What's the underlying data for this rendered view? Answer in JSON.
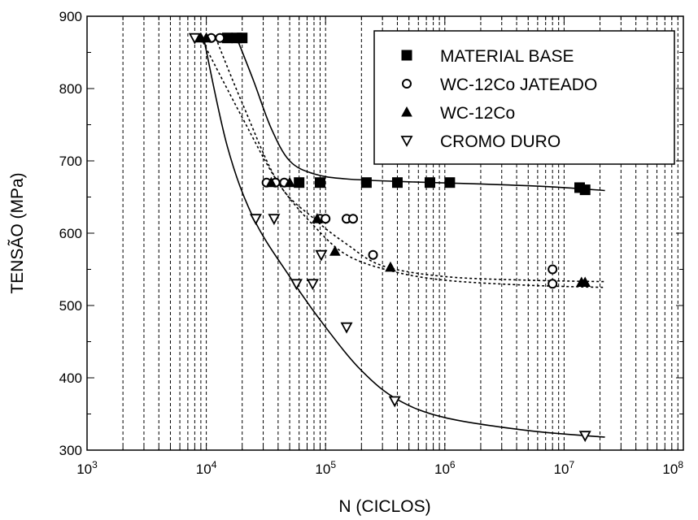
{
  "chart_data": {
    "type": "scatter",
    "title": "",
    "xlabel": "N (CICLOS)",
    "ylabel": "TENSÃO (MPa)",
    "x_scale": "log",
    "xlim": [
      1000,
      100000000
    ],
    "ylim": [
      300,
      900
    ],
    "x_ticks": [
      {
        "value": 1000,
        "base": "10",
        "exp": "3"
      },
      {
        "value": 10000,
        "base": "10",
        "exp": "4"
      },
      {
        "value": 100000,
        "base": "10",
        "exp": "5"
      },
      {
        "value": 1000000,
        "base": "10",
        "exp": "6"
      },
      {
        "value": 10000000,
        "base": "10",
        "exp": "7"
      },
      {
        "value": 100000000,
        "base": "10",
        "exp": "8"
      }
    ],
    "y_ticks": [
      300,
      400,
      500,
      600,
      700,
      800,
      900
    ],
    "grid": "vertical minor and major dashed lines",
    "legend_position": "top-right",
    "series": [
      {
        "name": "MATERIAL BASE",
        "marker": "filled-square",
        "points": [
          [
            18000,
            870
          ],
          [
            20000,
            870
          ],
          [
            60000,
            670
          ],
          [
            90000,
            670
          ],
          [
            220000,
            670
          ],
          [
            400000,
            670
          ],
          [
            750000,
            670
          ],
          [
            1100000,
            670
          ],
          [
            13500000,
            663
          ],
          [
            15000,
            870
          ],
          [
            15000000,
            660
          ]
        ],
        "fit": [
          [
            18000,
            870
          ],
          [
            25000,
            810
          ],
          [
            35000,
            745
          ],
          [
            50000,
            700
          ],
          [
            80000,
            682
          ],
          [
            150000,
            675
          ],
          [
            500000,
            671
          ],
          [
            2000000,
            668
          ],
          [
            8000000,
            664
          ],
          [
            22000000,
            659
          ]
        ]
      },
      {
        "name": "WC-12Co JATEADO",
        "marker": "open-circle",
        "points": [
          [
            11000,
            870
          ],
          [
            13000,
            870
          ],
          [
            32000,
            670
          ],
          [
            38000,
            670
          ],
          [
            45000,
            670
          ],
          [
            90000,
            620
          ],
          [
            100000,
            620
          ],
          [
            150000,
            620
          ],
          [
            170000,
            620
          ],
          [
            250000,
            570
          ],
          [
            8000000,
            550
          ],
          [
            8000000,
            530
          ]
        ],
        "fit": [
          [
            12000,
            870
          ],
          [
            20000,
            780
          ],
          [
            40000,
            670
          ],
          [
            80000,
            620
          ],
          [
            150000,
            585
          ],
          [
            300000,
            555
          ],
          [
            1000000,
            540
          ],
          [
            5000000,
            535
          ],
          [
            22000000,
            533
          ]
        ]
      },
      {
        "name": "WC-12Co",
        "marker": "filled-triangle",
        "points": [
          [
            9000,
            870
          ],
          [
            10000,
            870
          ],
          [
            35000,
            670
          ],
          [
            50000,
            670
          ],
          [
            85000,
            620
          ],
          [
            120000,
            575
          ],
          [
            350000,
            553
          ],
          [
            14000000,
            532
          ],
          [
            15000000,
            532
          ]
        ],
        "fit": [
          [
            9000,
            870
          ],
          [
            20000,
            760
          ],
          [
            40000,
            670
          ],
          [
            80000,
            610
          ],
          [
            150000,
            570
          ],
          [
            350000,
            548
          ],
          [
            1000000,
            535
          ],
          [
            5000000,
            528
          ],
          [
            22000000,
            525
          ]
        ]
      },
      {
        "name": "CROMO DURO",
        "marker": "open-triangle-down",
        "points": [
          [
            8000,
            870
          ],
          [
            26000,
            620
          ],
          [
            37000,
            620
          ],
          [
            57000,
            530
          ],
          [
            78000,
            530
          ],
          [
            92000,
            570
          ],
          [
            150000,
            470
          ],
          [
            380000,
            368
          ],
          [
            15000000,
            320
          ]
        ],
        "fit": [
          [
            9500,
            870
          ],
          [
            15000,
            720
          ],
          [
            25000,
            620
          ],
          [
            50000,
            540
          ],
          [
            100000,
            470
          ],
          [
            200000,
            410
          ],
          [
            400000,
            370
          ],
          [
            1000000,
            345
          ],
          [
            5000000,
            327
          ],
          [
            22000000,
            318
          ]
        ]
      }
    ]
  }
}
